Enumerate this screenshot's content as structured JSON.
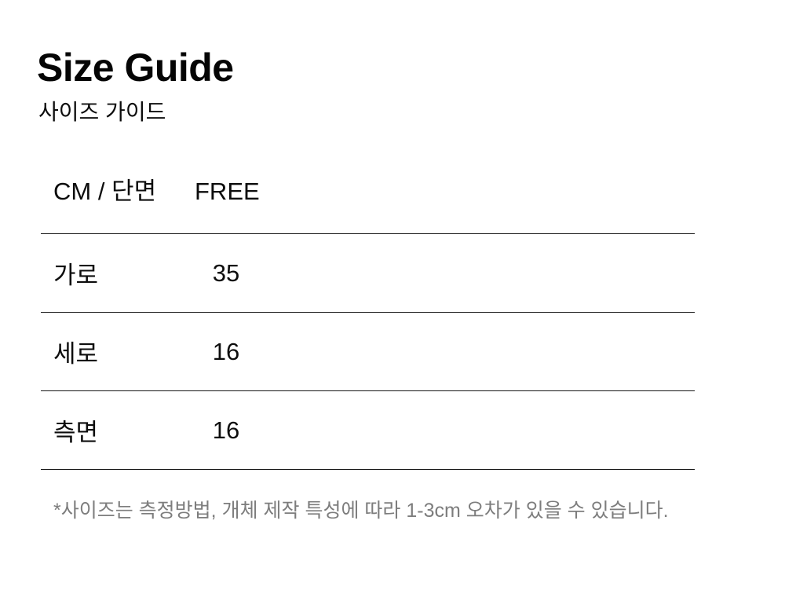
{
  "page": {
    "title": "Size Guide",
    "subtitle": "사이즈 가이드"
  },
  "size_table": {
    "unit_header": "CM / 단면",
    "size_header": "FREE",
    "rows": [
      {
        "label": "가로",
        "value": "35"
      },
      {
        "label": "세로",
        "value": "16"
      },
      {
        "label": "측면",
        "value": "16"
      }
    ]
  },
  "footnote": "*사이즈는 측정방법, 개체 제작 특성에 따라 1-3cm 오차가 있을 수 있습니다.",
  "colors": {
    "background": "#ffffff",
    "text": "#0d0d0d",
    "table_line": "#141414",
    "footnote_text": "#7d7d7d"
  }
}
